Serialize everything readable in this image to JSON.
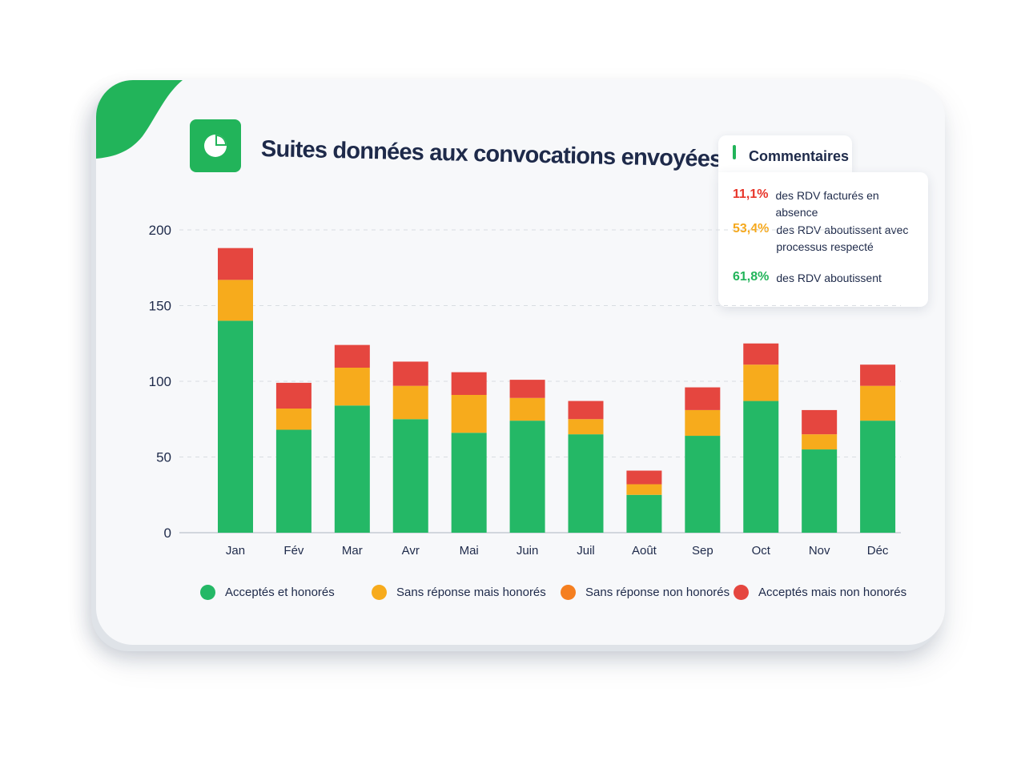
{
  "header": {
    "title": "Suites données aux convocations envoyées"
  },
  "comments": {
    "tab_label": "Commentaires",
    "items": [
      {
        "value": "11,1%",
        "text": "des RDV facturés en absence",
        "color": "#e8352a"
      },
      {
        "value": "53,4%",
        "text": "des RDV aboutissent avec processus respecté",
        "color": "#f5a81c"
      },
      {
        "value": "61,8%",
        "text": "des RDV aboutissent",
        "color": "#22b45a"
      }
    ]
  },
  "colors": {
    "brand": "#22b45a"
  },
  "chart_data": {
    "type": "bar",
    "stacked": true,
    "categories": [
      "Jan",
      "Fév",
      "Mar",
      "Avr",
      "Mai",
      "Juin",
      "Juil",
      "Août",
      "Sep",
      "Oct",
      "Nov",
      "Déc"
    ],
    "series": [
      {
        "name": "Acceptés et honorés",
        "color": "#24b866",
        "values": [
          140,
          68,
          84,
          75,
          66,
          74,
          65,
          25,
          64,
          87,
          55,
          74
        ]
      },
      {
        "name": "Sans réponse mais honorés",
        "color": "#f7ab1c",
        "values": [
          27,
          14,
          25,
          22,
          25,
          15,
          10,
          7,
          17,
          24,
          10,
          23
        ]
      },
      {
        "name": "Sans réponse non honorés",
        "color": "#f57f20",
        "values": [
          0,
          0,
          0,
          0,
          0,
          0,
          0,
          0,
          0,
          0,
          0,
          0
        ]
      },
      {
        "name": "Acceptés mais non honorés",
        "color": "#e5463f",
        "values": [
          21,
          17,
          15,
          16,
          15,
          12,
          12,
          9,
          15,
          14,
          16,
          14
        ]
      }
    ],
    "y_ticks": [
      "0",
      "50",
      "100",
      "150",
      "200"
    ],
    "ylim": [
      0,
      200
    ],
    "grid": true,
    "legend_position": "bottom"
  }
}
